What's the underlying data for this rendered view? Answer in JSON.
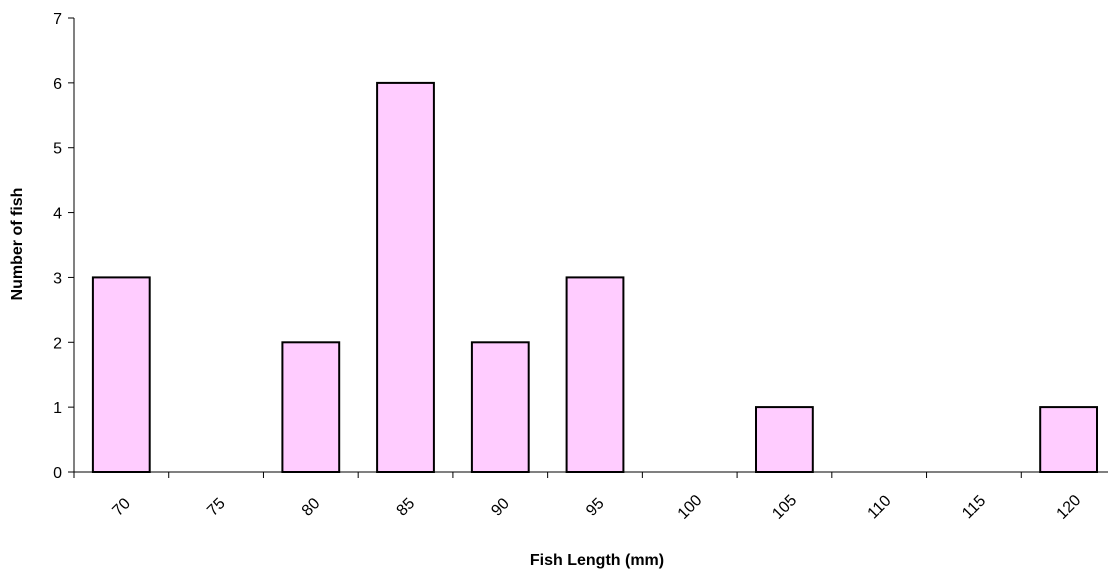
{
  "chart_data": {
    "type": "bar",
    "title": "",
    "xlabel": "Fish Length (mm)",
    "ylabel": "Number of fish",
    "categories": [
      "70",
      "75",
      "80",
      "85",
      "90",
      "95",
      "100",
      "105",
      "110",
      "115",
      "120"
    ],
    "values": [
      3,
      0,
      2,
      6,
      2,
      3,
      0,
      1,
      0,
      0,
      1
    ],
    "ylim": [
      0,
      7
    ],
    "yticks": [
      "0",
      "1",
      "2",
      "3",
      "4",
      "5",
      "6",
      "7"
    ],
    "grid": false,
    "legend": "none",
    "colors": {
      "bar_fill": "#ffccff",
      "bar_stroke": "#000000",
      "axis": "#000000"
    }
  }
}
